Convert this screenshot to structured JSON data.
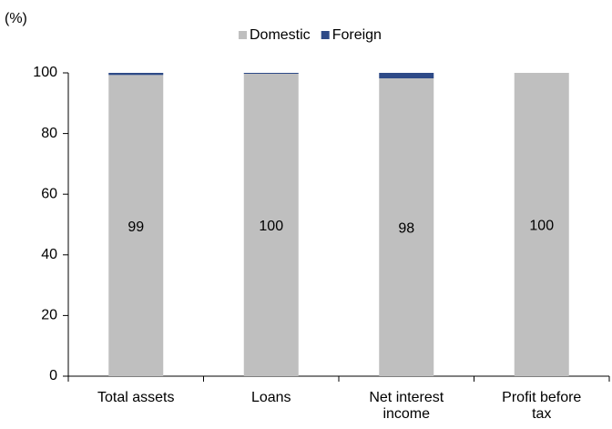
{
  "chart_data": {
    "type": "stacked_bar",
    "y_label": "(%)",
    "categories": [
      "Total assets",
      "Loans",
      "Net interest income",
      "Profit before tax"
    ],
    "series": [
      {
        "name": "Domestic",
        "color": "#bfbfbf",
        "values": [
          99.3,
          99.7,
          98.2,
          100
        ],
        "value_labels": [
          "99",
          "100",
          "98",
          "100"
        ]
      },
      {
        "name": "Foreign",
        "color": "#2e4a87",
        "values": [
          0.7,
          0.3,
          1.8,
          0
        ]
      }
    ],
    "ylim": [
      0,
      100
    ],
    "yticks": [
      0,
      20,
      40,
      60,
      80,
      100
    ],
    "grid": false,
    "legend": "top"
  }
}
